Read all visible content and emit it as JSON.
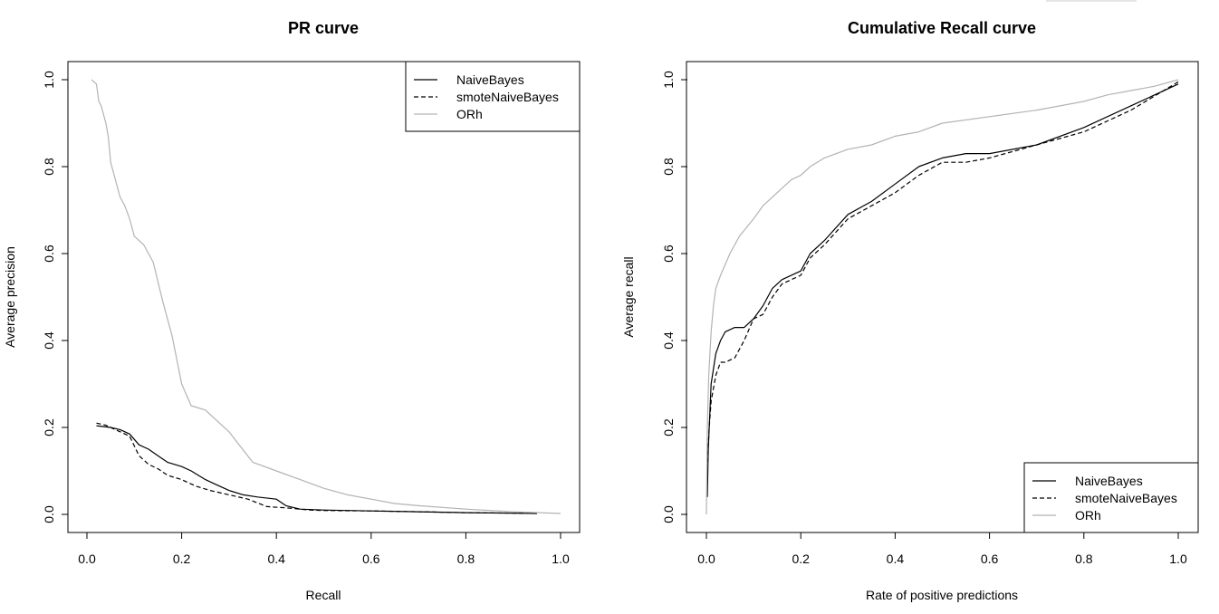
{
  "chart_data": [
    {
      "type": "line",
      "title": "PR curve",
      "xlabel": "Recall",
      "ylabel": "Average precision",
      "xlim": [
        0.0,
        1.0
      ],
      "ylim": [
        0.0,
        1.0
      ],
      "xticks": [
        "0.0",
        "0.2",
        "0.4",
        "0.6",
        "0.8",
        "1.0"
      ],
      "yticks": [
        "0.0",
        "0.2",
        "0.4",
        "0.6",
        "0.8",
        "1.0"
      ],
      "legend_position": "top-right",
      "series": [
        {
          "name": "NaiveBayes",
          "color": "#000000",
          "dash": "solid",
          "x": [
            0.02,
            0.05,
            0.07,
            0.09,
            0.11,
            0.13,
            0.15,
            0.17,
            0.2,
            0.22,
            0.25,
            0.27,
            0.3,
            0.33,
            0.36,
            0.4,
            0.42,
            0.45,
            0.5,
            0.55,
            0.6,
            0.7,
            0.8,
            0.9,
            0.95
          ],
          "y": [
            0.204,
            0.2,
            0.195,
            0.185,
            0.16,
            0.15,
            0.135,
            0.12,
            0.11,
            0.1,
            0.08,
            0.07,
            0.055,
            0.045,
            0.04,
            0.035,
            0.02,
            0.012,
            0.01,
            0.009,
            0.008,
            0.006,
            0.004,
            0.003,
            0.002
          ]
        },
        {
          "name": "smoteNaiveBayes",
          "color": "#000000",
          "dash": "dashed",
          "x": [
            0.02,
            0.04,
            0.06,
            0.09,
            0.11,
            0.13,
            0.15,
            0.17,
            0.2,
            0.23,
            0.26,
            0.3,
            0.34,
            0.38,
            0.42,
            0.47,
            0.5,
            0.6,
            0.7,
            0.8,
            0.9,
            0.95
          ],
          "y": [
            0.21,
            0.205,
            0.195,
            0.18,
            0.135,
            0.115,
            0.105,
            0.09,
            0.08,
            0.065,
            0.055,
            0.045,
            0.035,
            0.018,
            0.015,
            0.01,
            0.009,
            0.008,
            0.006,
            0.004,
            0.003,
            0.002
          ]
        },
        {
          "name": "ORh",
          "color": "#b3b3b3",
          "dash": "solid",
          "x": [
            0.01,
            0.02,
            0.025,
            0.03,
            0.04,
            0.045,
            0.05,
            0.06,
            0.07,
            0.08,
            0.09,
            0.1,
            0.12,
            0.14,
            0.16,
            0.18,
            0.2,
            0.22,
            0.25,
            0.28,
            0.3,
            0.35,
            0.4,
            0.45,
            0.5,
            0.55,
            0.6,
            0.65,
            0.7,
            0.8,
            0.9,
            1.0
          ],
          "y": [
            1.0,
            0.99,
            0.95,
            0.94,
            0.9,
            0.87,
            0.81,
            0.77,
            0.73,
            0.71,
            0.68,
            0.64,
            0.62,
            0.58,
            0.49,
            0.41,
            0.3,
            0.25,
            0.24,
            0.21,
            0.19,
            0.12,
            0.1,
            0.08,
            0.06,
            0.045,
            0.035,
            0.025,
            0.02,
            0.012,
            0.006,
            0.002
          ]
        }
      ]
    },
    {
      "type": "line",
      "title": "Cumulative Recall curve",
      "xlabel": "Rate of positive predictions",
      "ylabel": "Average recall",
      "xlim": [
        0.0,
        1.0
      ],
      "ylim": [
        0.0,
        1.0
      ],
      "xticks": [
        "0.0",
        "0.2",
        "0.4",
        "0.6",
        "0.8",
        "1.0"
      ],
      "yticks": [
        "0.0",
        "0.2",
        "0.4",
        "0.6",
        "0.8",
        "1.0"
      ],
      "legend_position": "bottom-right",
      "series": [
        {
          "name": "NaiveBayes",
          "color": "#000000",
          "dash": "solid",
          "x": [
            0.002,
            0.004,
            0.006,
            0.01,
            0.02,
            0.03,
            0.04,
            0.06,
            0.08,
            0.1,
            0.12,
            0.14,
            0.16,
            0.2,
            0.22,
            0.25,
            0.3,
            0.35,
            0.4,
            0.45,
            0.5,
            0.55,
            0.6,
            0.7,
            0.8,
            0.9,
            1.0
          ],
          "y": [
            0.04,
            0.15,
            0.2,
            0.3,
            0.37,
            0.4,
            0.42,
            0.43,
            0.43,
            0.45,
            0.48,
            0.52,
            0.54,
            0.56,
            0.6,
            0.63,
            0.69,
            0.72,
            0.76,
            0.8,
            0.82,
            0.83,
            0.83,
            0.85,
            0.89,
            0.94,
            0.99
          ]
        },
        {
          "name": "smoteNaiveBayes",
          "color": "#000000",
          "dash": "dashed",
          "x": [
            0.002,
            0.004,
            0.006,
            0.01,
            0.02,
            0.03,
            0.04,
            0.06,
            0.08,
            0.1,
            0.12,
            0.14,
            0.16,
            0.2,
            0.22,
            0.25,
            0.3,
            0.35,
            0.4,
            0.45,
            0.5,
            0.55,
            0.6,
            0.7,
            0.8,
            0.9,
            1.0
          ],
          "y": [
            0.12,
            0.16,
            0.2,
            0.26,
            0.32,
            0.35,
            0.35,
            0.36,
            0.4,
            0.45,
            0.46,
            0.5,
            0.53,
            0.55,
            0.59,
            0.62,
            0.68,
            0.71,
            0.74,
            0.78,
            0.81,
            0.81,
            0.82,
            0.85,
            0.88,
            0.93,
            0.995
          ]
        },
        {
          "name": "ORh",
          "color": "#b3b3b3",
          "dash": "solid",
          "x": [
            0.0,
            0.002,
            0.005,
            0.01,
            0.015,
            0.02,
            0.03,
            0.05,
            0.07,
            0.1,
            0.12,
            0.15,
            0.18,
            0.2,
            0.22,
            0.25,
            0.3,
            0.35,
            0.4,
            0.45,
            0.5,
            0.6,
            0.7,
            0.8,
            0.85,
            0.9,
            0.95,
            1.0
          ],
          "y": [
            0.0,
            0.2,
            0.32,
            0.42,
            0.48,
            0.52,
            0.55,
            0.6,
            0.64,
            0.68,
            0.71,
            0.74,
            0.77,
            0.78,
            0.8,
            0.82,
            0.84,
            0.85,
            0.87,
            0.88,
            0.9,
            0.915,
            0.93,
            0.95,
            0.965,
            0.975,
            0.985,
            1.0
          ]
        }
      ]
    }
  ]
}
